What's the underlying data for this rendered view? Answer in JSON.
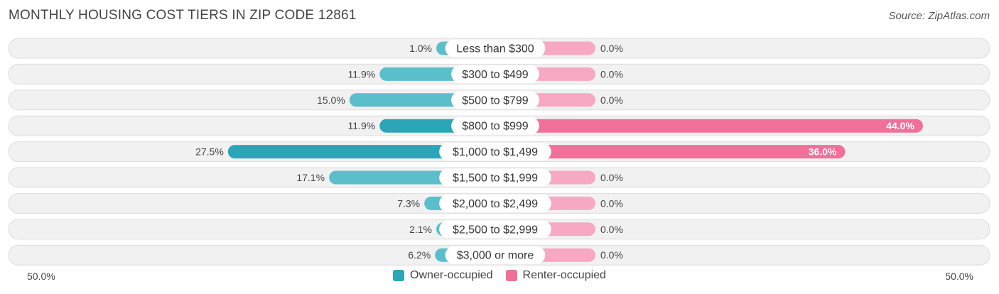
{
  "header": {
    "title": "MONTHLY HOUSING COST TIERS IN ZIP CODE 12861",
    "source": "Source: ZipAtlas.com"
  },
  "colors": {
    "owner_bar": "#5bbfcb",
    "owner_bar_strong": "#2aa6b6",
    "renter_bar": "#f7a8c2",
    "renter_bar_strong": "#f07099",
    "row_bg": "#f0f0f0",
    "row_border": "#dddddd"
  },
  "chart_data": {
    "type": "bar",
    "orientation": "diverging-horizontal",
    "categories": [
      "Less than $300",
      "$300 to $499",
      "$500 to $799",
      "$800 to $999",
      "$1,000 to $1,499",
      "$1,500 to $1,999",
      "$2,000 to $2,499",
      "$2,500 to $2,999",
      "$3,000 or more"
    ],
    "series": [
      {
        "name": "Owner-occupied",
        "values": [
          1.0,
          11.9,
          15.0,
          11.9,
          27.5,
          17.1,
          7.3,
          2.1,
          6.2
        ],
        "labels": [
          "1.0%",
          "11.9%",
          "15.0%",
          "11.9%",
          "27.5%",
          "17.1%",
          "7.3%",
          "2.1%",
          "6.2%"
        ]
      },
      {
        "name": "Renter-occupied",
        "values": [
          0.0,
          0.0,
          0.0,
          44.0,
          36.0,
          0.0,
          0.0,
          0.0,
          0.0
        ],
        "labels": [
          "0.0%",
          "0.0%",
          "0.0%",
          "44.0%",
          "36.0%",
          "0.0%",
          "0.0%",
          "0.0%",
          "0.0%"
        ]
      }
    ],
    "xlim": [
      -50,
      50
    ],
    "axis_labels": {
      "left": "50.0%",
      "right": "50.0%"
    },
    "legend_position": "bottom-center"
  },
  "legend": {
    "owner_label": "Owner-occupied",
    "renter_label": "Renter-occupied"
  }
}
